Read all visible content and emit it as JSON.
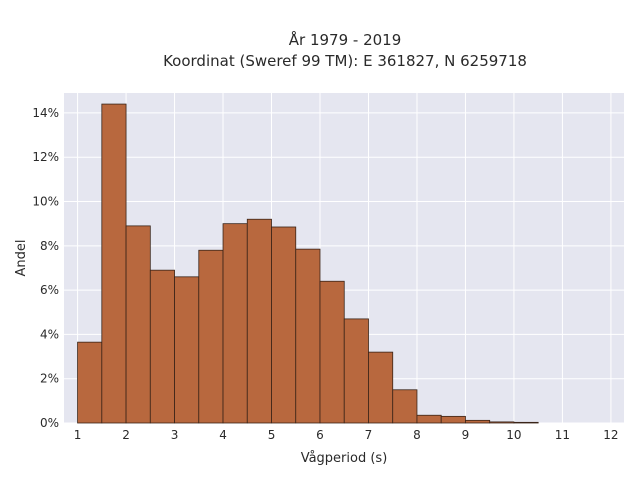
{
  "chart_data": {
    "type": "bar",
    "title_line1": "År 1979 - 2019",
    "title_line2": "Koordinat (Sweref 99 TM): E 361827, N 6259718",
    "xlabel": "Vågperiod (s)",
    "ylabel": "Andel",
    "bin_width": 0.5,
    "bin_starts": [
      1.0,
      1.5,
      2.0,
      2.5,
      3.0,
      3.5,
      4.0,
      4.5,
      5.0,
      5.5,
      6.0,
      6.5,
      7.0,
      7.5,
      8.0,
      8.5,
      9.0,
      9.5,
      10.0
    ],
    "values": [
      3.65,
      14.4,
      8.9,
      6.9,
      6.6,
      7.8,
      9.0,
      9.2,
      8.85,
      7.85,
      6.4,
      4.7,
      3.2,
      1.5,
      0.35,
      0.3,
      0.12,
      0.05,
      0.03
    ],
    "xlim": [
      0.72,
      12.27
    ],
    "ylim": [
      0,
      14.9
    ],
    "x_ticks": [
      1,
      2,
      3,
      4,
      5,
      6,
      7,
      8,
      9,
      10,
      11,
      12
    ],
    "x_tick_labels": [
      "1",
      "2",
      "3",
      "4",
      "5",
      "6",
      "7",
      "8",
      "9",
      "10",
      "11",
      "12"
    ],
    "y_ticks": [
      0,
      2,
      4,
      6,
      8,
      10,
      12,
      14
    ],
    "y_tick_labels": [
      "0%",
      "2%",
      "4%",
      "6%",
      "8%",
      "10%",
      "12%",
      "14%"
    ],
    "grid": true,
    "colors": {
      "bar_fill": "#b8683e",
      "bar_edge": "#3a2418",
      "plot_background": "#e5e6f0",
      "grid": "#ffffff"
    }
  }
}
